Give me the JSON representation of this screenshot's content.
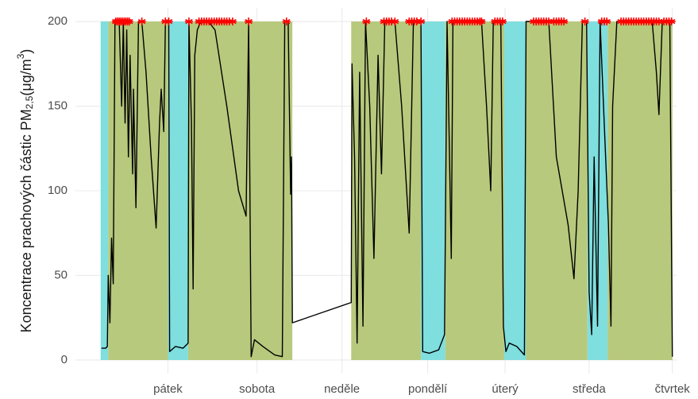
{
  "chart_data": {
    "type": "line",
    "y_label": {
      "main": "Koncentrace prachových částic  PM",
      "sub": "2,5",
      "unit": "(μg/m",
      "sup": "3",
      "close": ")"
    },
    "xlim": [
      -0.1,
      7.05
    ],
    "xticks": [
      {
        "value": 1,
        "label": "pátek"
      },
      {
        "value": 2.06,
        "label": "sobota"
      },
      {
        "value": 3.07,
        "label": "neděle"
      },
      {
        "value": 4.09,
        "label": "pondělí"
      },
      {
        "value": 5.01,
        "label": "úterý"
      },
      {
        "value": 6.01,
        "label": "středa"
      },
      {
        "value": 7,
        "label": "čtvrtek"
      }
    ],
    "ylim": [
      -8,
      208
    ],
    "yticks": [
      0,
      50,
      100,
      150,
      200
    ],
    "grid": true,
    "bands": [
      {
        "start": 0.2,
        "end": 0.29,
        "color": "#7fdede"
      },
      {
        "start": 0.29,
        "end": 1.0,
        "color": "#b7c97c"
      },
      {
        "start": 1.0,
        "end": 1.24,
        "color": "#7fdede"
      },
      {
        "start": 1.24,
        "end": 2.48,
        "color": "#b7c97c"
      },
      {
        "start": 3.18,
        "end": 4.01,
        "color": "#b7c97c"
      },
      {
        "start": 4.01,
        "end": 4.3,
        "color": "#7fdede"
      },
      {
        "start": 4.3,
        "end": 5.0,
        "color": "#b7c97c"
      },
      {
        "start": 5.0,
        "end": 5.26,
        "color": "#7fdede"
      },
      {
        "start": 5.26,
        "end": 5.99,
        "color": "#b7c97c"
      },
      {
        "start": 5.99,
        "end": 6.23,
        "color": "#7fdede"
      },
      {
        "start": 6.23,
        "end": 7.0,
        "color": "#b7c97c"
      }
    ],
    "series": [
      {
        "color": "#000000",
        "x": [
          0.21,
          0.26,
          0.28,
          0.29,
          0.31,
          0.33,
          0.35,
          0.37,
          0.42,
          0.45,
          0.47,
          0.49,
          0.51,
          0.53,
          0.55,
          0.58,
          0.59,
          0.62,
          0.65,
          0.69,
          0.74,
          0.8,
          0.86,
          0.9,
          0.92,
          0.95,
          0.97,
          1.01,
          1.02,
          1.09,
          1.18,
          1.24,
          1.25,
          1.28,
          1.3,
          1.32,
          1.35,
          1.39,
          1.48,
          1.56,
          1.7,
          1.84,
          1.93,
          1.96,
          1.99,
          2.03,
          2.13,
          2.27,
          2.36,
          2.39,
          2.43,
          2.46,
          2.47,
          2.48,
          3.18,
          3.19,
          3.22,
          3.25,
          3.28,
          3.32,
          3.35,
          3.4,
          3.45,
          3.5,
          3.54,
          3.58,
          3.7,
          3.78,
          3.87,
          3.92,
          4.01,
          4.03,
          4.11,
          4.22,
          4.29,
          4.32,
          4.35,
          4.37,
          4.39,
          4.73,
          4.79,
          4.84,
          4.87,
          4.96,
          4.99,
          5.02,
          5.06,
          5.15,
          5.24,
          5.26,
          5.34,
          5.53,
          5.62,
          5.76,
          5.83,
          5.88,
          5.93,
          5.98,
          6.01,
          6.04,
          6.07,
          6.11,
          6.14,
          6.19,
          6.24,
          6.27,
          6.29,
          6.34,
          6.76,
          6.81,
          6.84,
          6.88,
          6.97,
          7.0
        ],
        "values": [
          7,
          7,
          8,
          50,
          22,
          72,
          45,
          200,
          200,
          150,
          200,
          140,
          195,
          120,
          180,
          110,
          160,
          90,
          200,
          200,
          170,
          120,
          78,
          140,
          160,
          135,
          200,
          200,
          5,
          8,
          7,
          10,
          200,
          140,
          42,
          180,
          195,
          200,
          200,
          195,
          150,
          100,
          85,
          200,
          2,
          12,
          8,
          3,
          2,
          200,
          200,
          98,
          120,
          22,
          34,
          175,
          120,
          10,
          170,
          20,
          200,
          150,
          60,
          180,
          110,
          200,
          200,
          150,
          75,
          200,
          200,
          5,
          4,
          6,
          15,
          200,
          120,
          60,
          200,
          200,
          150,
          100,
          200,
          200,
          20,
          5,
          10,
          8,
          3,
          200,
          200,
          200,
          120,
          80,
          48,
          100,
          200,
          200,
          40,
          15,
          120,
          20,
          200,
          140,
          80,
          20,
          150,
          200,
          200,
          170,
          145,
          200,
          200,
          2
        ]
      },
      {
        "color": "#ff0000",
        "x": [
          0.38,
          0.4,
          0.42,
          0.44,
          0.46,
          0.48,
          0.5,
          0.52,
          0.54,
          0.69,
          0.97,
          1.01,
          1.25,
          1.37,
          1.4,
          1.43,
          1.46,
          1.49,
          1.52,
          1.55,
          1.58,
          1.61,
          1.64,
          1.67,
          1.7,
          1.73,
          1.77,
          1.96,
          2.41,
          3.36,
          3.57,
          3.6,
          3.63,
          3.66,
          3.7,
          3.87,
          3.9,
          3.93,
          3.96,
          4.01,
          4.38,
          4.41,
          4.44,
          4.47,
          4.5,
          4.53,
          4.56,
          4.59,
          4.62,
          4.65,
          4.68,
          4.71,
          4.73,
          4.89,
          4.92,
          4.95,
          4.98,
          5.35,
          5.38,
          5.41,
          5.44,
          5.47,
          5.5,
          5.53,
          5.59,
          5.62,
          5.65,
          5.68,
          5.71,
          5.96,
          6.16,
          6.19,
          6.22,
          6.39,
          6.42,
          6.45,
          6.48,
          6.51,
          6.54,
          6.57,
          6.6,
          6.63,
          6.66,
          6.69,
          6.72,
          6.75,
          6.78,
          6.81,
          6.84,
          6.9,
          6.93,
          6.96,
          6.99
        ],
        "values": [
          200,
          200,
          200,
          200,
          200,
          200,
          200,
          200,
          200,
          200,
          200,
          200,
          200,
          200,
          200,
          200,
          200,
          200,
          200,
          200,
          200,
          200,
          200,
          200,
          200,
          200,
          200,
          200,
          200,
          200,
          200,
          200,
          200,
          200,
          200,
          200,
          200,
          200,
          200,
          200,
          200,
          200,
          200,
          200,
          200,
          200,
          200,
          200,
          200,
          200,
          200,
          200,
          200,
          200,
          200,
          200,
          200,
          200,
          200,
          200,
          200,
          200,
          200,
          200,
          200,
          200,
          200,
          200,
          200,
          200,
          200,
          200,
          200,
          200,
          200,
          200,
          200,
          200,
          200,
          200,
          200,
          200,
          200,
          200,
          200,
          200,
          200,
          200,
          200,
          200,
          200,
          200,
          200
        ]
      }
    ]
  }
}
